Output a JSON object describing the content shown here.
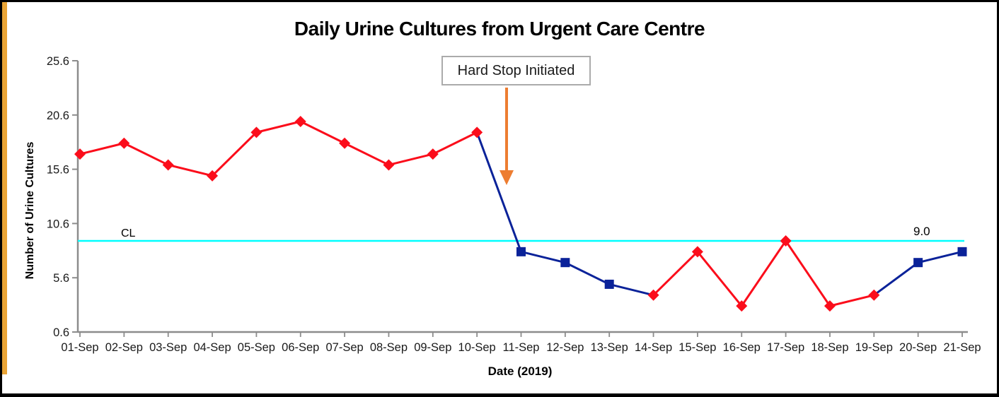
{
  "window": {
    "accent_stripe_color": "#E9A436",
    "background": "#FFFFFF",
    "border_color": "#000000"
  },
  "colors": {
    "red": "#FB0D1B",
    "navy": "#0A2299",
    "cyan": "#00FFFF",
    "orange": "#ED7D31",
    "axis": "#8C8C8C",
    "tick_text": "#1A1A1A",
    "box_border": "#ABABAB"
  },
  "chart_data": {
    "type": "line",
    "title": "Daily Urine Cultures from Urgent Care Centre",
    "xlabel": "Date (2019)",
    "ylabel": "Number of Urine Cultures",
    "categories": [
      "01-Sep",
      "02-Sep",
      "03-Sep",
      "04-Sep",
      "05-Sep",
      "06-Sep",
      "07-Sep",
      "08-Sep",
      "09-Sep",
      "10-Sep",
      "11-Sep",
      "12-Sep",
      "13-Sep",
      "14-Sep",
      "15-Sep",
      "16-Sep",
      "17-Sep",
      "18-Sep",
      "19-Sep",
      "20-Sep",
      "21-Sep"
    ],
    "values": [
      17,
      18,
      16,
      15,
      19,
      20,
      18,
      16,
      17,
      19,
      8,
      7,
      5,
      4,
      8,
      3,
      9,
      3,
      4,
      7,
      8
    ],
    "marker_styles": [
      "red",
      "red",
      "red",
      "red",
      "red",
      "red",
      "red",
      "red",
      "red",
      "red",
      "navy",
      "navy",
      "navy",
      "red",
      "red",
      "red",
      "red",
      "red",
      "red",
      "navy",
      "navy"
    ],
    "segment_colors": [
      "red",
      "red",
      "red",
      "red",
      "red",
      "red",
      "red",
      "red",
      "red",
      "navy",
      "navy",
      "navy",
      "navy",
      "red",
      "red",
      "red",
      "red",
      "red",
      "navy",
      "navy"
    ],
    "y_ticks": [
      25.6,
      20.6,
      15.6,
      10.6,
      5.6,
      0.6
    ],
    "ylim": [
      0.6,
      25.6
    ],
    "grid": false,
    "legend": "none",
    "center_line": {
      "label": "CL",
      "value": 9.0,
      "value_label": "9.0"
    },
    "annotation": {
      "text": "Hard Stop Initiated",
      "points_to_category": "11-Sep"
    }
  }
}
